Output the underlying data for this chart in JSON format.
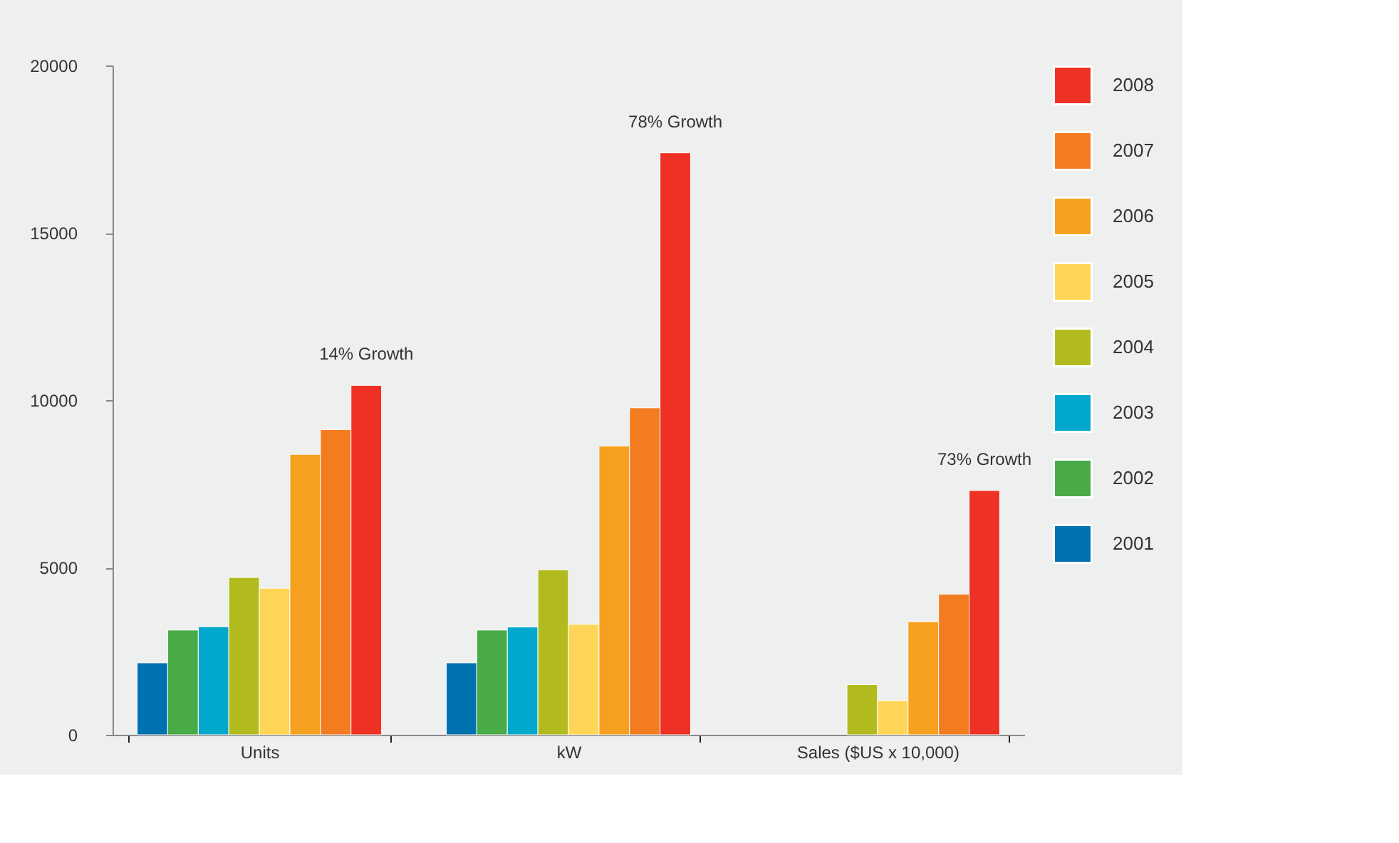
{
  "chart_data": {
    "type": "bar",
    "categories": [
      "Units",
      "kW",
      "Sales ($US x 10,000)"
    ],
    "series": [
      {
        "name": "2001",
        "color": "#0072b0",
        "values": [
          2150,
          2150,
          null
        ]
      },
      {
        "name": "2002",
        "color": "#48ab47",
        "values": [
          3130,
          3130,
          null
        ]
      },
      {
        "name": "2003",
        "color": "#00a8cc",
        "values": [
          3230,
          3220,
          null
        ]
      },
      {
        "name": "2004",
        "color": "#b2bb1e",
        "values": [
          4700,
          4930,
          1500
        ]
      },
      {
        "name": "2005",
        "color": "#fed557",
        "values": [
          4380,
          3300,
          1020
        ]
      },
      {
        "name": "2006",
        "color": "#f6a01f",
        "values": [
          8380,
          8630,
          3380
        ]
      },
      {
        "name": "2007",
        "color": "#f37b20",
        "values": [
          9120,
          9770,
          4200
        ]
      },
      {
        "name": "2008",
        "color": "#ee3124",
        "values": [
          10440,
          17390,
          7300
        ]
      }
    ],
    "ylim": [
      0,
      20000
    ],
    "yticks": [
      0,
      5000,
      10000,
      15000,
      20000
    ],
    "grid": false,
    "legend": "right",
    "annotations": [
      "14% Growth",
      "78% Growth",
      "73% Growth"
    ]
  }
}
